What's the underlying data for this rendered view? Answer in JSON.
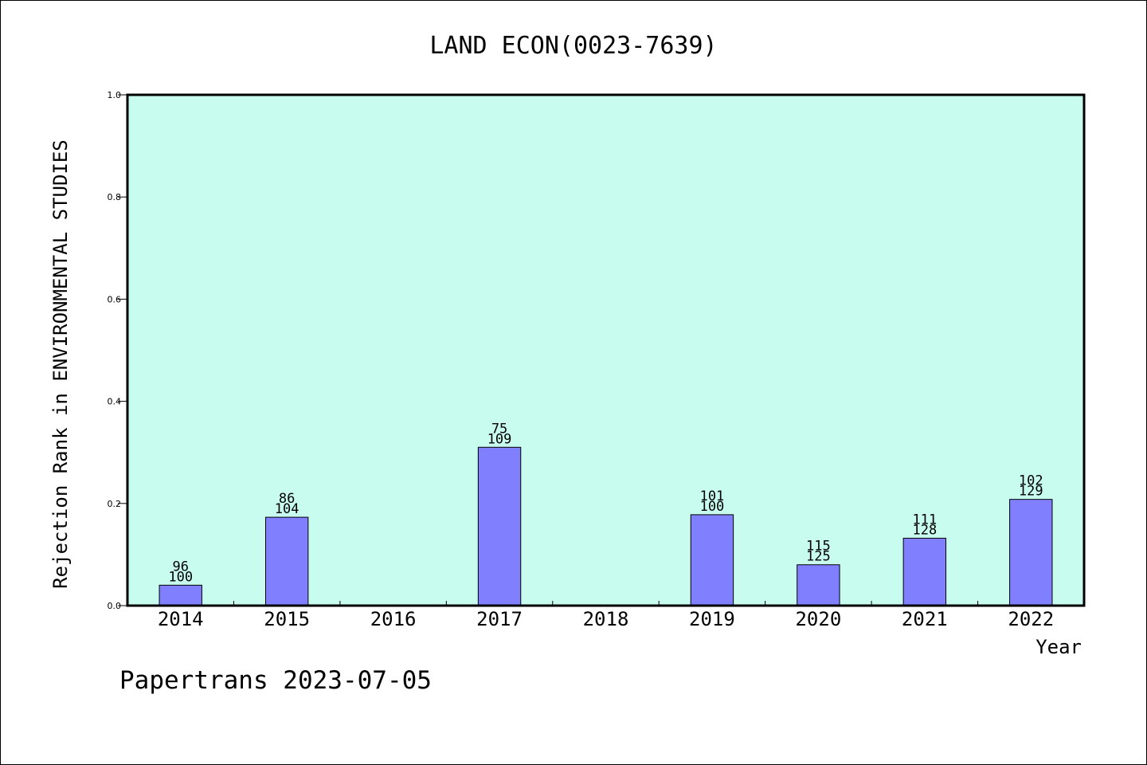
{
  "chart_data": {
    "type": "bar",
    "title": "LAND ECON(0023-7639)",
    "xlabel": "Year",
    "ylabel": "Rejection Rank in ENVIRONMENTAL STUDIES",
    "footer": "Papertrans 2023-07-05",
    "categories": [
      "2014",
      "2015",
      "2016",
      "2017",
      "2018",
      "2019",
      "2020",
      "2021",
      "2022"
    ],
    "values": [
      0.04,
      0.173,
      null,
      0.31,
      null,
      0.178,
      0.08,
      0.132,
      0.208
    ],
    "labels_top": [
      "96",
      "86",
      "",
      "75",
      "",
      "101",
      "115",
      "111",
      "102"
    ],
    "labels_bottom": [
      "100",
      "104",
      "",
      "109",
      "",
      "100",
      "125",
      "128",
      "129"
    ],
    "ylim": [
      0,
      1.0
    ],
    "yticks": [
      "0.0",
      "0.2",
      "0.4",
      "0.6",
      "0.8",
      "1.0"
    ],
    "grid": false,
    "colors": {
      "plot_background": "#c8fcef",
      "bar_fill": "#8080ff",
      "bar_stroke": "#000000",
      "axis": "#000000"
    }
  }
}
